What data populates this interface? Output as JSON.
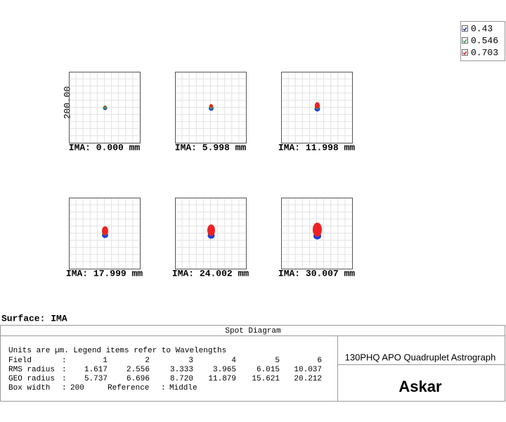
{
  "legend": [
    {
      "label": "0.43",
      "color": "#1f3fd6"
    },
    {
      "label": "0.546",
      "color": "#2fa84a"
    },
    {
      "label": "0.703",
      "color": "#ee2222"
    }
  ],
  "scale_label": "200.00",
  "plots": [
    "IMA: 0.000 mm",
    "IMA: 5.998 mm",
    "IMA: 11.998 mm",
    "IMA: 17.999 mm",
    "IMA: 24.002 mm",
    "IMA: 30.007 mm"
  ],
  "surface": "Surface: IMA",
  "table": {
    "title": "Spot Diagram",
    "note": "Units are µm. Legend items refer to Wavelengths",
    "rows": [
      {
        "label": "Field",
        "values": [
          "1",
          "2",
          "3",
          "4",
          "5",
          "6"
        ]
      },
      {
        "label": "RMS radius",
        "values": [
          "1.617",
          "2.556",
          "3.333",
          "3.965",
          "6.015",
          "10.037"
        ]
      },
      {
        "label": "GEO radius",
        "values": [
          "5.737",
          "6.696",
          "8.720",
          "11.879",
          "15.621",
          "20.212"
        ]
      }
    ],
    "box_width_label": "Box width",
    "box_width": "200",
    "reference_label": "Reference",
    "reference": "Middle",
    "lens_title": "130PHQ APO Quadruplet Astrograph",
    "brand": "Askar"
  }
}
